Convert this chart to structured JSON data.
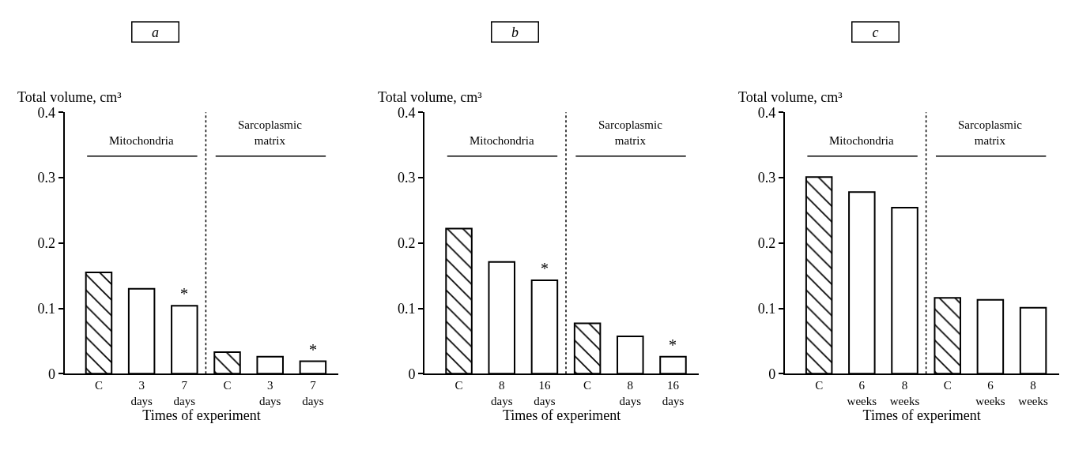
{
  "chart_data": [
    {
      "type": "bar",
      "title": "a",
      "ylabel": "Total volume, cm³",
      "xlabel": "Times of experiment",
      "categories": [
        "C",
        "3\ndays",
        "7\ndays",
        "C",
        "3\ndays",
        "7\ndays"
      ],
      "series": [
        {
          "color": "#000000",
          "values": [
            0.155,
            null,
            null,
            0.033,
            null,
            null
          ]
        },
        {
          "color": "#ffffff",
          "values": [
            null,
            0.13,
            0.104,
            null,
            0.026,
            0.019
          ],
          "value_labels": [
            null,
            null,
            "*",
            null,
            null,
            "*"
          ]
        }
      ],
      "ylim": [
        0,
        0.4
      ],
      "yticks": [
        0,
        0.1,
        0.2,
        0.3,
        0.4
      ],
      "annotations": [
        "Mitochondria",
        "Sarcoplasmic\nmatrix"
      ]
    },
    {
      "type": "bar",
      "title": "b",
      "ylabel": "Total volume, cm³",
      "xlabel": "Times of experiment",
      "categories": [
        "C",
        "8\ndays",
        "16\ndays",
        "C",
        "8\ndays",
        "16\ndays"
      ],
      "series": [
        {
          "color": "#000000",
          "values": [
            0.222,
            null,
            null,
            0.077,
            null,
            null
          ]
        },
        {
          "color": "#ffffff",
          "values": [
            null,
            0.171,
            0.143,
            null,
            0.057,
            0.026
          ],
          "value_labels": [
            null,
            null,
            "*",
            null,
            null,
            "*"
          ]
        }
      ],
      "ylim": [
        0,
        0.4
      ],
      "yticks": [
        0,
        0.1,
        0.2,
        0.3,
        0.4
      ],
      "annotations": [
        "Mitochondria",
        "Sarcoplasmic\nmatrix"
      ]
    },
    {
      "type": "bar",
      "title": "c",
      "ylabel": "Total volume, cm³",
      "xlabel": "Times of experiment",
      "categories": [
        "C",
        "6\nweeks",
        "8\nweeks",
        "C",
        "6\nweeks",
        "8\nweeks"
      ],
      "series": [
        {
          "color": "#000000",
          "values": [
            0.301,
            null,
            null,
            0.116,
            null,
            null
          ]
        },
        {
          "color": "#ffffff",
          "values": [
            null,
            0.278,
            0.254,
            null,
            0.113,
            0.101
          ]
        }
      ],
      "ylim": [
        0,
        0.4
      ],
      "yticks": [
        0,
        0.1,
        0.2,
        0.3,
        0.4
      ],
      "annotations": [
        "Mitochondria",
        "Sarcoplasmic\nmatrix"
      ]
    }
  ]
}
